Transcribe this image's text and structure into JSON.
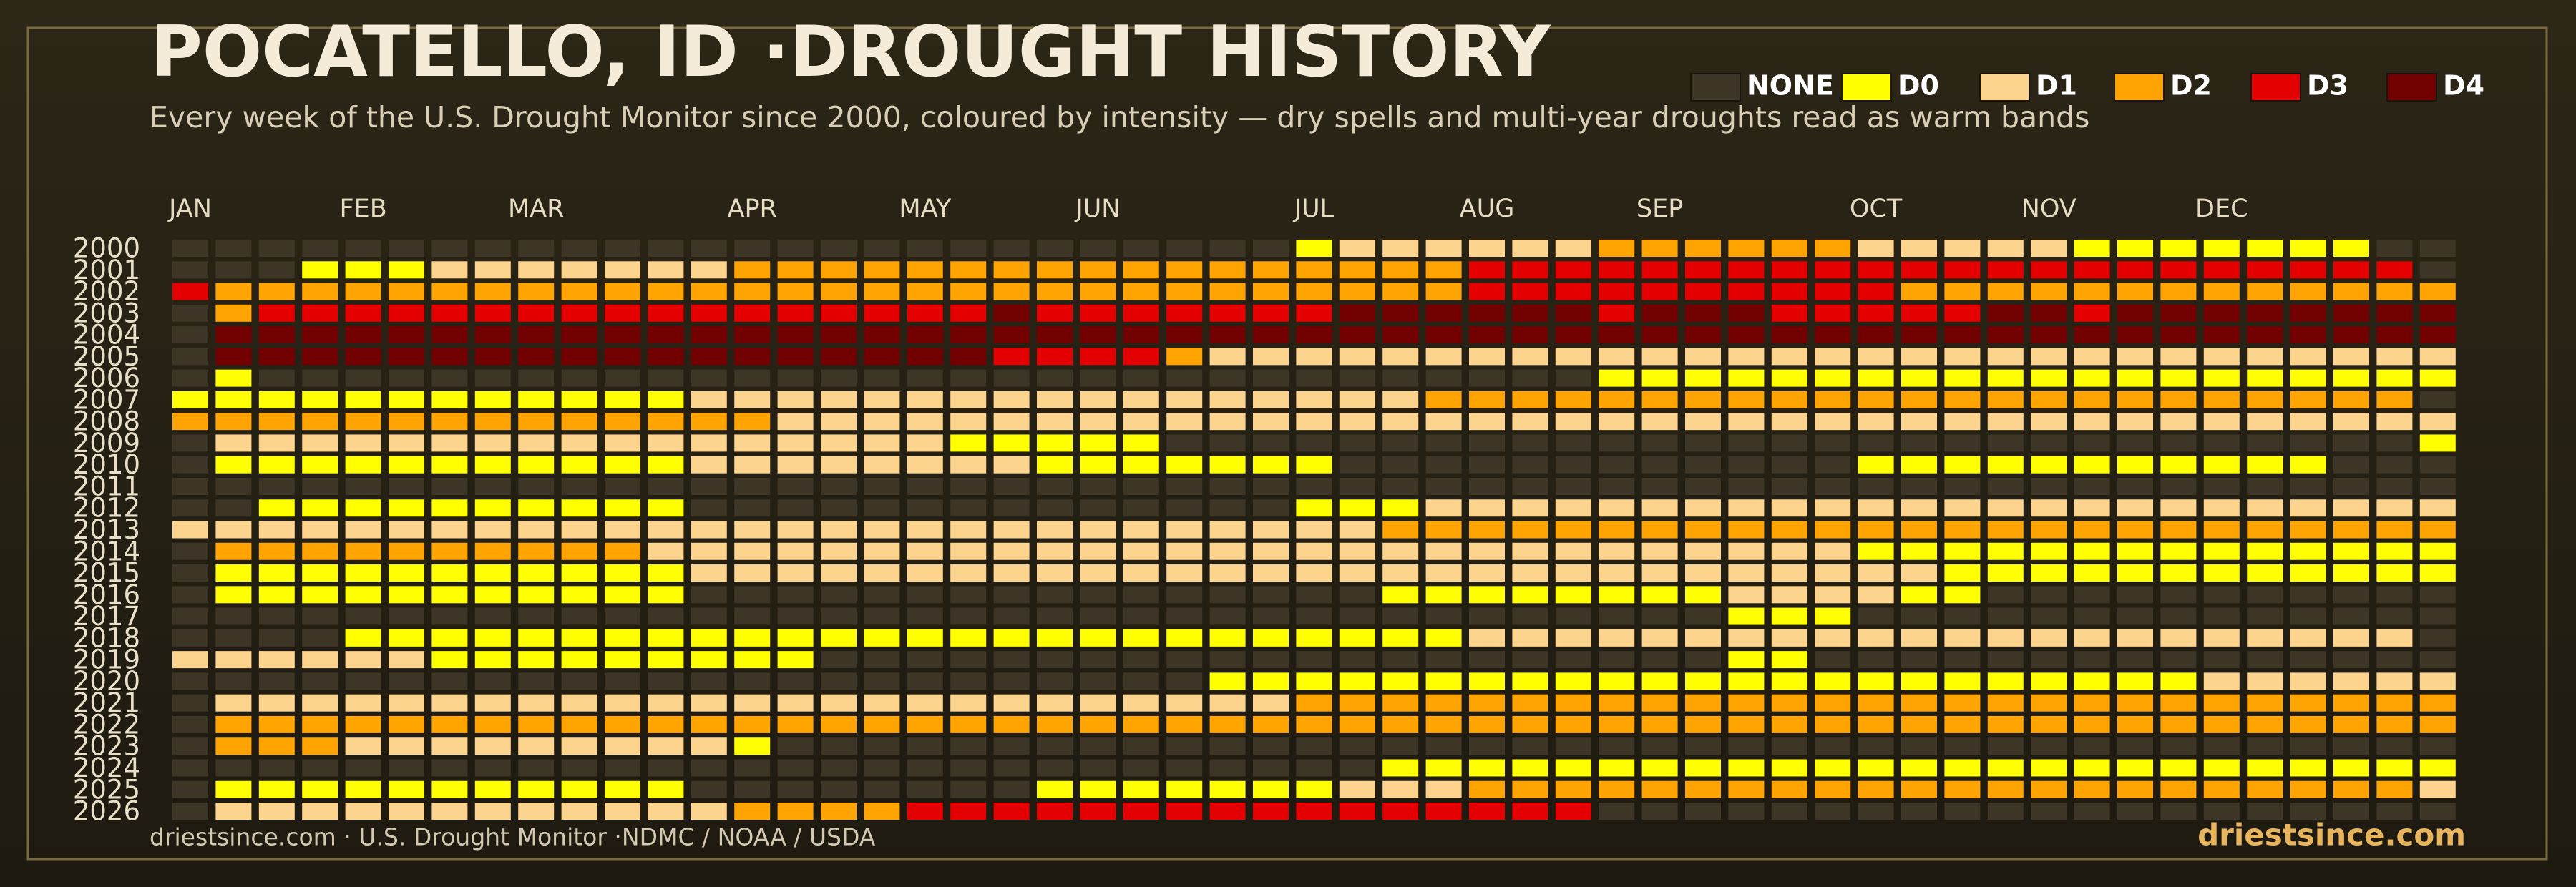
{
  "chart_data": {
    "type": "heatmap",
    "title": "POCATELLO, ID ·DROUGHT HISTORY",
    "subtitle": "Every week of the U.S. Drought Monitor since 2000, coloured by intensity — dry spells and multi-year droughts read as warm bands",
    "source": "driestsince.com  · U.S. Drought Monitor ·NDMC / NOAA / USDA",
    "brand": "driestsince.com",
    "months": [
      "JAN",
      "FEB",
      "MAR",
      "APR",
      "MAY",
      "JUN",
      "JUL",
      "AUG",
      "SEP",
      "OCT",
      "NOV",
      "DEC"
    ],
    "categories": [
      "2000",
      "2001",
      "2002",
      "2003",
      "2004",
      "2005",
      "2006",
      "2007",
      "2008",
      "2009",
      "2010",
      "2011",
      "2012",
      "2013",
      "2014",
      "2015",
      "2016",
      "2017",
      "2018",
      "2019",
      "2020",
      "2021",
      "2022",
      "2023",
      "2024",
      "2025",
      "2026"
    ],
    "levels": [
      {
        "name": "NONE",
        "color": "#3d3526"
      },
      {
        "name": "D0",
        "color": "#ffff00"
      },
      {
        "name": "D1",
        "color": "#fcd48e"
      },
      {
        "name": "D2",
        "color": "#ffa400"
      },
      {
        "name": "D3",
        "color": "#e40000"
      },
      {
        "name": "D4",
        "color": "#720000"
      }
    ],
    "values": [
      [
        0,
        0,
        0,
        0,
        0,
        0,
        0,
        0,
        0,
        0,
        0,
        0,
        0,
        0,
        0,
        0,
        0,
        0,
        0,
        0,
        0,
        0,
        0,
        0,
        0,
        0,
        1,
        2,
        2,
        2,
        2,
        2,
        2,
        3,
        3,
        3,
        3,
        3,
        3,
        2,
        2,
        2,
        2,
        2,
        1,
        1,
        1,
        1,
        1,
        1,
        1,
        0,
        0
      ],
      [
        0,
        0,
        0,
        1,
        1,
        1,
        2,
        2,
        2,
        2,
        2,
        2,
        2,
        3,
        3,
        3,
        3,
        3,
        3,
        3,
        3,
        3,
        3,
        3,
        3,
        3,
        3,
        3,
        3,
        3,
        4,
        4,
        4,
        4,
        4,
        4,
        4,
        4,
        4,
        4,
        4,
        4,
        4,
        4,
        4,
        4,
        4,
        4,
        4,
        4,
        4,
        4,
        0
      ],
      [
        4,
        3,
        3,
        3,
        3,
        3,
        3,
        3,
        3,
        3,
        3,
        3,
        3,
        3,
        3,
        3,
        3,
        3,
        3,
        3,
        3,
        3,
        3,
        3,
        3,
        3,
        3,
        3,
        3,
        3,
        4,
        4,
        4,
        4,
        4,
        4,
        4,
        4,
        4,
        4,
        3,
        3,
        3,
        3,
        3,
        3,
        3,
        3,
        3,
        3,
        3,
        3,
        3
      ],
      [
        0,
        3,
        4,
        4,
        4,
        4,
        4,
        4,
        4,
        4,
        4,
        4,
        4,
        4,
        4,
        4,
        4,
        4,
        4,
        5,
        4,
        4,
        4,
        4,
        4,
        4,
        4,
        5,
        5,
        5,
        5,
        5,
        5,
        4,
        5,
        5,
        5,
        4,
        4,
        4,
        4,
        4,
        5,
        5,
        4,
        5,
        5,
        5,
        5,
        5,
        5,
        5,
        5
      ],
      [
        0,
        5,
        5,
        5,
        5,
        5,
        5,
        5,
        5,
        5,
        5,
        5,
        5,
        5,
        5,
        5,
        5,
        5,
        5,
        5,
        5,
        5,
        5,
        5,
        5,
        5,
        5,
        5,
        5,
        5,
        5,
        5,
        5,
        5,
        5,
        5,
        5,
        5,
        5,
        5,
        5,
        5,
        5,
        5,
        5,
        5,
        5,
        5,
        5,
        5,
        5,
        5,
        5
      ],
      [
        0,
        5,
        5,
        5,
        5,
        5,
        5,
        5,
        5,
        5,
        5,
        5,
        5,
        5,
        5,
        5,
        5,
        5,
        5,
        4,
        4,
        4,
        4,
        3,
        2,
        2,
        2,
        2,
        2,
        2,
        2,
        2,
        2,
        2,
        2,
        2,
        2,
        2,
        2,
        2,
        2,
        2,
        2,
        2,
        2,
        2,
        2,
        2,
        2,
        2,
        2,
        2,
        2
      ],
      [
        0,
        1,
        0,
        0,
        0,
        0,
        0,
        0,
        0,
        0,
        0,
        0,
        0,
        0,
        0,
        0,
        0,
        0,
        0,
        0,
        0,
        0,
        0,
        0,
        0,
        0,
        0,
        0,
        0,
        0,
        0,
        0,
        0,
        1,
        1,
        1,
        1,
        1,
        1,
        1,
        1,
        1,
        1,
        1,
        1,
        1,
        1,
        1,
        1,
        1,
        1,
        1,
        1
      ],
      [
        1,
        1,
        1,
        1,
        1,
        1,
        1,
        1,
        1,
        1,
        1,
        1,
        2,
        2,
        2,
        2,
        2,
        2,
        2,
        2,
        2,
        2,
        2,
        2,
        2,
        2,
        2,
        2,
        2,
        3,
        3,
        3,
        3,
        3,
        3,
        3,
        3,
        3,
        3,
        3,
        3,
        3,
        3,
        3,
        3,
        3,
        3,
        3,
        3,
        3,
        3,
        3,
        0
      ],
      [
        3,
        3,
        3,
        3,
        3,
        3,
        3,
        3,
        3,
        3,
        3,
        3,
        3,
        3,
        2,
        2,
        2,
        2,
        2,
        2,
        2,
        2,
        2,
        2,
        2,
        2,
        2,
        2,
        2,
        2,
        2,
        2,
        2,
        2,
        2,
        2,
        2,
        2,
        2,
        2,
        2,
        2,
        2,
        2,
        2,
        2,
        2,
        2,
        2,
        2,
        2,
        2,
        2
      ],
      [
        0,
        2,
        2,
        2,
        2,
        2,
        2,
        2,
        2,
        2,
        2,
        2,
        2,
        2,
        2,
        2,
        2,
        2,
        1,
        1,
        1,
        1,
        1,
        0,
        0,
        0,
        0,
        0,
        0,
        0,
        0,
        0,
        0,
        0,
        0,
        0,
        0,
        0,
        0,
        0,
        0,
        0,
        0,
        0,
        0,
        0,
        0,
        0,
        0,
        0,
        0,
        0,
        1
      ],
      [
        0,
        1,
        1,
        1,
        1,
        1,
        1,
        1,
        1,
        1,
        1,
        1,
        2,
        2,
        2,
        2,
        2,
        2,
        2,
        2,
        1,
        1,
        1,
        1,
        1,
        1,
        1,
        0,
        0,
        0,
        0,
        0,
        0,
        0,
        0,
        0,
        0,
        0,
        0,
        1,
        1,
        1,
        1,
        1,
        1,
        1,
        1,
        1,
        1,
        1,
        0,
        0,
        0
      ],
      [
        0,
        0,
        0,
        0,
        0,
        0,
        0,
        0,
        0,
        0,
        0,
        0,
        0,
        0,
        0,
        0,
        0,
        0,
        0,
        0,
        0,
        0,
        0,
        0,
        0,
        0,
        0,
        0,
        0,
        0,
        0,
        0,
        0,
        0,
        0,
        0,
        0,
        0,
        0,
        0,
        0,
        0,
        0,
        0,
        0,
        0,
        0,
        0,
        0,
        0,
        0,
        0,
        0
      ],
      [
        0,
        0,
        1,
        1,
        1,
        1,
        1,
        1,
        1,
        1,
        1,
        1,
        0,
        0,
        0,
        0,
        0,
        0,
        0,
        0,
        0,
        0,
        0,
        0,
        0,
        0,
        1,
        1,
        1,
        2,
        2,
        2,
        2,
        2,
        2,
        2,
        2,
        2,
        2,
        2,
        2,
        2,
        2,
        2,
        2,
        2,
        2,
        2,
        2,
        2,
        2,
        2,
        2
      ],
      [
        2,
        2,
        2,
        2,
        2,
        2,
        2,
        2,
        2,
        2,
        2,
        2,
        2,
        2,
        2,
        2,
        2,
        2,
        2,
        2,
        2,
        2,
        2,
        2,
        2,
        2,
        2,
        2,
        3,
        3,
        3,
        3,
        3,
        3,
        3,
        3,
        3,
        3,
        3,
        3,
        3,
        3,
        3,
        3,
        3,
        3,
        3,
        3,
        3,
        3,
        3,
        3,
        3
      ],
      [
        0,
        3,
        3,
        3,
        3,
        3,
        3,
        3,
        3,
        3,
        3,
        2,
        2,
        2,
        2,
        2,
        2,
        2,
        2,
        2,
        2,
        2,
        2,
        2,
        2,
        2,
        2,
        2,
        2,
        2,
        2,
        2,
        2,
        2,
        2,
        2,
        2,
        2,
        2,
        1,
        1,
        1,
        1,
        1,
        1,
        1,
        1,
        1,
        1,
        1,
        1,
        1,
        1
      ],
      [
        0,
        1,
        1,
        1,
        1,
        1,
        1,
        1,
        1,
        1,
        1,
        1,
        2,
        2,
        2,
        2,
        2,
        2,
        2,
        2,
        2,
        2,
        2,
        2,
        2,
        2,
        2,
        2,
        2,
        2,
        2,
        2,
        2,
        2,
        2,
        2,
        2,
        2,
        2,
        2,
        2,
        1,
        1,
        1,
        1,
        1,
        1,
        1,
        1,
        1,
        1,
        1,
        1
      ],
      [
        0,
        1,
        1,
        1,
        1,
        1,
        1,
        1,
        1,
        1,
        1,
        1,
        0,
        0,
        0,
        0,
        0,
        0,
        0,
        0,
        0,
        0,
        0,
        0,
        0,
        0,
        0,
        0,
        1,
        1,
        1,
        1,
        1,
        1,
        1,
        1,
        2,
        2,
        2,
        2,
        1,
        1,
        0,
        0,
        0,
        0,
        0,
        0,
        0,
        0,
        0,
        0,
        0
      ],
      [
        0,
        0,
        0,
        0,
        0,
        0,
        0,
        0,
        0,
        0,
        0,
        0,
        0,
        0,
        0,
        0,
        0,
        0,
        0,
        0,
        0,
        0,
        0,
        0,
        0,
        0,
        0,
        0,
        0,
        0,
        0,
        0,
        0,
        0,
        0,
        0,
        1,
        1,
        1,
        0,
        0,
        0,
        0,
        0,
        0,
        0,
        0,
        0,
        0,
        0,
        0,
        0,
        0
      ],
      [
        0,
        0,
        0,
        0,
        1,
        1,
        1,
        1,
        1,
        1,
        1,
        1,
        1,
        1,
        1,
        1,
        1,
        1,
        1,
        1,
        1,
        1,
        1,
        1,
        1,
        1,
        1,
        1,
        1,
        1,
        2,
        2,
        2,
        2,
        2,
        2,
        2,
        2,
        2,
        2,
        2,
        2,
        2,
        2,
        2,
        2,
        2,
        2,
        2,
        2,
        2,
        2,
        0
      ],
      [
        2,
        2,
        2,
        2,
        2,
        2,
        1,
        1,
        1,
        1,
        1,
        1,
        1,
        1,
        1,
        0,
        0,
        0,
        0,
        0,
        0,
        0,
        0,
        0,
        0,
        0,
        0,
        0,
        0,
        0,
        0,
        0,
        0,
        0,
        0,
        0,
        1,
        1,
        0,
        0,
        0,
        0,
        0,
        0,
        0,
        0,
        0,
        0,
        0,
        0,
        0,
        0,
        0
      ],
      [
        0,
        0,
        0,
        0,
        0,
        0,
        0,
        0,
        0,
        0,
        0,
        0,
        0,
        0,
        0,
        0,
        0,
        0,
        0,
        0,
        0,
        0,
        0,
        0,
        1,
        1,
        1,
        1,
        1,
        1,
        1,
        1,
        1,
        1,
        1,
        1,
        1,
        1,
        1,
        1,
        1,
        1,
        1,
        1,
        1,
        1,
        1,
        2,
        2,
        2,
        2,
        2,
        2
      ],
      [
        0,
        2,
        2,
        2,
        2,
        2,
        2,
        2,
        2,
        2,
        2,
        2,
        2,
        2,
        2,
        2,
        2,
        2,
        2,
        2,
        2,
        2,
        2,
        2,
        2,
        2,
        3,
        3,
        3,
        3,
        3,
        3,
        3,
        3,
        3,
        3,
        3,
        3,
        3,
        3,
        3,
        3,
        3,
        3,
        3,
        3,
        3,
        3,
        3,
        3,
        3,
        3,
        3
      ],
      [
        0,
        3,
        3,
        3,
        3,
        3,
        3,
        3,
        3,
        3,
        3,
        3,
        3,
        3,
        3,
        3,
        3,
        3,
        3,
        3,
        3,
        3,
        3,
        3,
        3,
        3,
        3,
        3,
        3,
        3,
        3,
        3,
        3,
        3,
        3,
        3,
        3,
        3,
        3,
        3,
        3,
        3,
        3,
        3,
        3,
        3,
        3,
        3,
        3,
        3,
        3,
        3,
        3
      ],
      [
        0,
        3,
        3,
        3,
        2,
        2,
        2,
        2,
        2,
        2,
        2,
        2,
        2,
        1,
        0,
        0,
        0,
        0,
        0,
        0,
        0,
        0,
        0,
        0,
        0,
        0,
        0,
        0,
        0,
        0,
        0,
        0,
        0,
        0,
        0,
        0,
        0,
        0,
        0,
        0,
        0,
        0,
        0,
        0,
        0,
        0,
        0,
        0,
        0,
        0,
        0,
        0,
        0
      ],
      [
        0,
        0,
        0,
        0,
        0,
        0,
        0,
        0,
        0,
        0,
        0,
        0,
        0,
        0,
        0,
        0,
        0,
        0,
        0,
        0,
        0,
        0,
        0,
        0,
        0,
        0,
        0,
        0,
        1,
        1,
        1,
        1,
        1,
        1,
        1,
        1,
        1,
        1,
        1,
        1,
        1,
        1,
        1,
        1,
        1,
        1,
        1,
        1,
        1,
        1,
        1,
        1,
        1
      ],
      [
        0,
        1,
        1,
        1,
        1,
        1,
        1,
        1,
        1,
        1,
        1,
        1,
        0,
        0,
        0,
        0,
        0,
        0,
        0,
        0,
        1,
        1,
        1,
        1,
        1,
        1,
        1,
        2,
        2,
        2,
        3,
        3,
        3,
        3,
        3,
        3,
        3,
        3,
        3,
        3,
        3,
        3,
        3,
        3,
        3,
        3,
        3,
        3,
        3,
        3,
        3,
        3,
        2
      ],
      [
        0,
        2,
        2,
        2,
        2,
        2,
        2,
        2,
        2,
        2,
        2,
        2,
        2,
        3,
        3,
        3,
        3,
        4,
        4,
        4,
        4,
        4,
        4,
        4,
        4,
        4,
        4,
        4,
        4,
        4,
        4,
        4,
        4,
        0,
        0,
        0,
        0,
        0,
        0,
        0,
        0,
        0,
        0,
        0,
        0,
        0,
        0,
        0,
        0,
        0,
        0,
        0,
        0
      ]
    ]
  }
}
